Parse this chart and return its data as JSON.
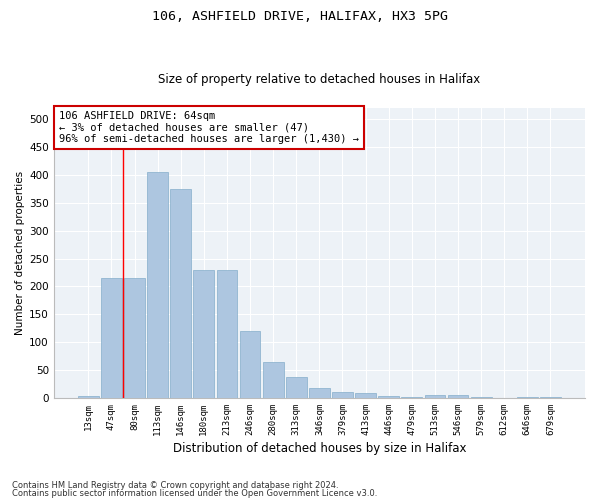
{
  "title1": "106, ASHFIELD DRIVE, HALIFAX, HX3 5PG",
  "title2": "Size of property relative to detached houses in Halifax",
  "xlabel": "Distribution of detached houses by size in Halifax",
  "ylabel": "Number of detached properties",
  "categories": [
    "13sqm",
    "47sqm",
    "80sqm",
    "113sqm",
    "146sqm",
    "180sqm",
    "213sqm",
    "246sqm",
    "280sqm",
    "313sqm",
    "346sqm",
    "379sqm",
    "413sqm",
    "446sqm",
    "479sqm",
    "513sqm",
    "546sqm",
    "579sqm",
    "612sqm",
    "646sqm",
    "679sqm"
  ],
  "values": [
    3,
    215,
    215,
    405,
    375,
    230,
    230,
    120,
    65,
    38,
    17,
    11,
    8,
    3,
    1,
    5,
    5,
    1,
    0,
    1,
    1
  ],
  "bar_color": "#adc6e0",
  "bar_edge_color": "#85aecb",
  "bg_color": "#edf2f7",
  "grid_color": "#ffffff",
  "redline_x": 1.5,
  "annotation_text": "106 ASHFIELD DRIVE: 64sqm\n← 3% of detached houses are smaller (47)\n96% of semi-detached houses are larger (1,430) →",
  "annotation_box_color": "#ffffff",
  "annotation_box_edge_color": "#cc0000",
  "ylim": [
    0,
    520
  ],
  "yticks": [
    0,
    50,
    100,
    150,
    200,
    250,
    300,
    350,
    400,
    450,
    500
  ],
  "footer1": "Contains HM Land Registry data © Crown copyright and database right 2024.",
  "footer2": "Contains public sector information licensed under the Open Government Licence v3.0.",
  "fig_bg": "#ffffff"
}
